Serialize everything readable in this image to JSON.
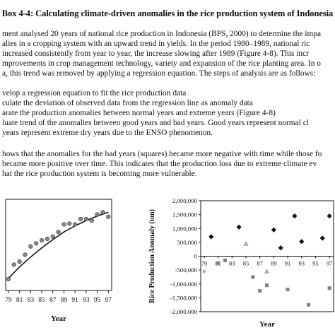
{
  "box": {
    "title": "Box 4-4: Calculating climate-driven anomalies in the rice production system of Indonesia"
  },
  "paragraph1": {
    "lines": [
      "ment analysed 20 years of national rice production in Indonesia (BPS, 2000) to determine the impa",
      "alies in a cropping system with an upward trend in yields. In the period 1980–1989, national ric",
      "increased consistently from year to year, the increase slowing after 1989 (Figure 4-8). This incr",
      "mprovements in crop management technology, variety and expansion of the rice planting area. In o",
      "a, this trend was removed by applying a regression equation. The steps of analysis are as follows:"
    ]
  },
  "steps": {
    "lines": [
      "velop a regression equation to fit the rice production data",
      "culate the deviation of observed data from the regression line as anomaly data",
      "arate the production anomalies between normal years and extreme years (Figure 4-8)",
      "luate trend of the anomalies between good years and bad years.  Good years represent normal cl",
      " years represent extreme dry years due to the ENSO phenomenon."
    ]
  },
  "paragraph2": {
    "lines": [
      "hows that the anomalies for the bad years (squares) became more negative with time while those fo",
      "became more positive over time. This indicates that the production loss due to extreme climate ev",
      "hat the rice production system is becoming more vulnerable."
    ]
  },
  "chart_data": [
    {
      "type": "scatter",
      "title": "",
      "xlabel": "Year",
      "ylabel": "",
      "x_ticks": [
        "79",
        "81",
        "83",
        "85",
        "87",
        "89",
        "91",
        "93",
        "95",
        "97"
      ],
      "xlim": [
        78.5,
        97.6
      ],
      "ylim": [
        0,
        1.2
      ],
      "grid": false,
      "colors": {
        "points": "#888888",
        "fit_line": "#111111",
        "axis": "#111111"
      },
      "series": [
        {
          "type": "scatter",
          "x": [
            79,
            80,
            81,
            82,
            83,
            84,
            85,
            86,
            87,
            88,
            89,
            90,
            91,
            92,
            93,
            94,
            95,
            96,
            97
          ],
          "y": [
            0.15,
            0.34,
            0.38,
            0.47,
            0.58,
            0.62,
            0.66,
            0.68,
            0.71,
            0.77,
            0.87,
            0.88,
            0.87,
            0.94,
            0.94,
            0.92,
            1.0,
            1.03,
            0.97
          ]
        },
        {
          "type": "line",
          "x": [
            79,
            81,
            83,
            85,
            87,
            89,
            91,
            93,
            95,
            97
          ],
          "y": [
            0.16,
            0.31,
            0.44,
            0.56,
            0.67,
            0.77,
            0.85,
            0.92,
            0.98,
            1.03
          ]
        }
      ]
    },
    {
      "type": "scatter",
      "title": "",
      "xlabel": "Year",
      "ylabel": "Rice Production Anomaly (ton)",
      "x_ticks": [
        "79",
        "81",
        "83",
        "85",
        "87",
        "89",
        "91",
        "93",
        "95",
        "97"
      ],
      "y_ticks": [
        2000000,
        1500000,
        1000000,
        500000,
        0,
        -500000,
        -1000000,
        -1500000,
        -2000000
      ],
      "y_tick_labels": [
        "2,000,000",
        "1,500,000",
        "1,000,000",
        "500,000",
        "0",
        "-500,000",
        "-1,000,000",
        "-1,500,000",
        "-2,000,000"
      ],
      "xlim": [
        78.5,
        97.6
      ],
      "ylim": [
        -2000000,
        2000000
      ],
      "grid": false,
      "colors": {
        "normal": "#111111",
        "bad": "#808080",
        "neutral": "#aaaaaa",
        "axis": "#111111"
      },
      "series": [
        {
          "marker": "diamond",
          "x": [
            80,
            84,
            89,
            90,
            92,
            93,
            96,
            97
          ],
          "y": [
            700000,
            1050000,
            950000,
            300000,
            1450000,
            530000,
            650000,
            1450000
          ]
        },
        {
          "marker": "square",
          "x": [
            81,
            82,
            86,
            87,
            88,
            91,
            94,
            97
          ],
          "y": [
            -250000,
            -150000,
            -750000,
            -1250000,
            -1050000,
            -1200000,
            -1750000,
            -1150000
          ]
        },
        {
          "marker": "triangle",
          "x": [
            85,
            88
          ],
          "y": [
            450000,
            -550000
          ]
        },
        {
          "marker": "circle",
          "x": [
            79
          ],
          "y": [
            -550000
          ]
        }
      ]
    }
  ]
}
